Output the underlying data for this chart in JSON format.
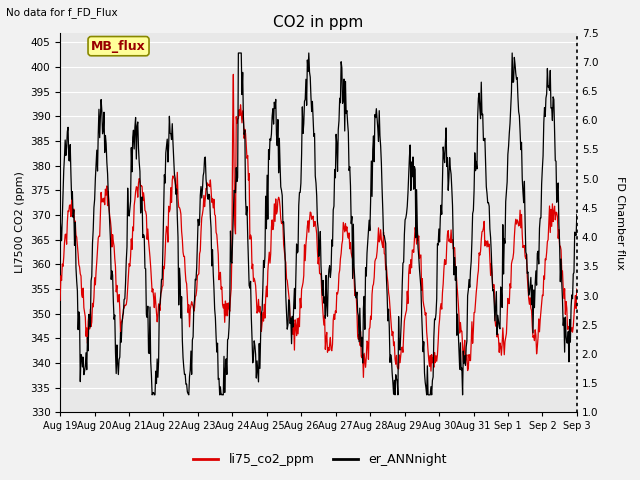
{
  "title": "CO2 in ppm",
  "ylabel_left": "LI7500 CO2 (ppm)",
  "ylabel_right": "FD Chamber flux",
  "no_data_text": "No data for f_FD_Flux",
  "mb_flux_label": "MB_flux",
  "xlabels": [
    "Aug 19",
    "Aug 20",
    "Aug 21",
    "Aug 22",
    "Aug 23",
    "Aug 24",
    "Aug 25",
    "Aug 26",
    "Aug 27",
    "Aug 28",
    "Aug 29",
    "Aug 30",
    "Aug 31",
    "Sep 1",
    "Sep 2",
    "Sep 3"
  ],
  "ylim_left": [
    330,
    407
  ],
  "ylim_right": [
    1.0,
    7.5
  ],
  "yticks_left": [
    330,
    335,
    340,
    345,
    350,
    355,
    360,
    365,
    370,
    375,
    380,
    385,
    390,
    395,
    400,
    405
  ],
  "yticks_right": [
    1.0,
    1.5,
    2.0,
    2.5,
    3.0,
    3.5,
    4.0,
    4.5,
    5.0,
    5.5,
    6.0,
    6.5,
    7.0,
    7.5
  ],
  "legend_label_red": "li75_co2_ppm",
  "legend_label_black": "er_ANNnight",
  "red_color": "#dd0000",
  "black_color": "#000000",
  "plot_bg": "#e8e8e8",
  "fig_bg": "#f2f2f2",
  "grid_color": "#ffffff",
  "figwidth": 6.4,
  "figheight": 4.8,
  "dpi": 100
}
